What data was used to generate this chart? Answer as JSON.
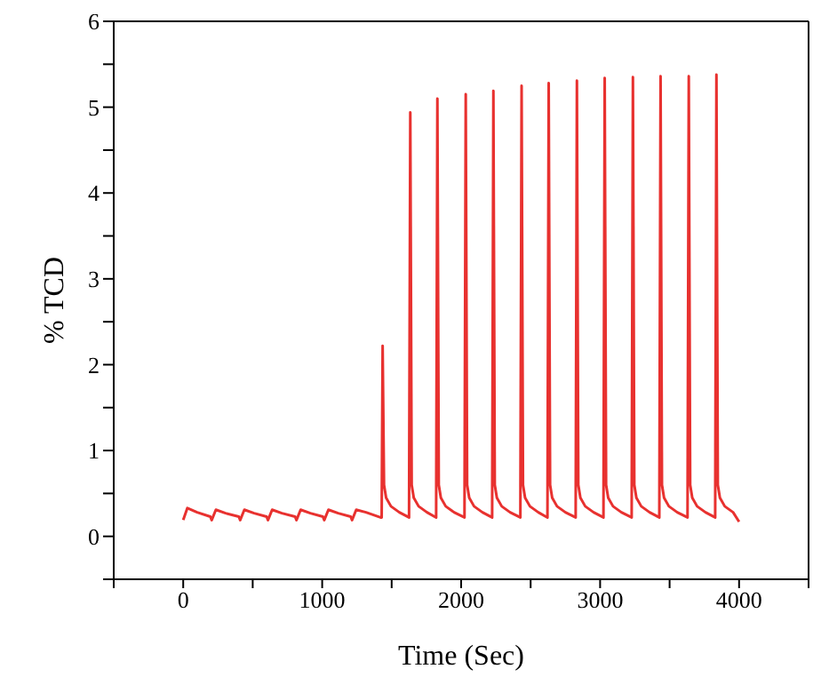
{
  "chart_data": {
    "type": "line",
    "xlabel": "Time (Sec)",
    "ylabel": "% TCD",
    "xlim": [
      -500,
      4500
    ],
    "ylim": [
      -0.5,
      6
    ],
    "xticks": [
      {
        "value": -500,
        "label": null
      },
      0,
      {
        "value": 500,
        "label": null
      },
      1000,
      {
        "value": 1500,
        "label": null
      },
      2000,
      {
        "value": 2500,
        "label": null
      },
      3000,
      {
        "value": 3500,
        "label": null
      },
      4000,
      {
        "value": 4500,
        "label": null
      }
    ],
    "yticks": [
      {
        "value": -0.5,
        "label": null
      },
      0,
      {
        "value": 0.5,
        "label": null
      },
      1,
      {
        "value": 1.5,
        "label": null
      },
      2,
      {
        "value": 2.5,
        "label": null
      },
      3,
      {
        "value": 3.5,
        "label": null
      },
      4,
      {
        "value": 4.5,
        "label": null
      },
      5,
      {
        "value": 5.5,
        "label": null
      },
      6
    ],
    "grid": false,
    "legend": false,
    "marker": "none",
    "line_style": "solid",
    "series": [
      {
        "color": "#e8312f",
        "x": [
          0,
          30,
          100,
          195,
          205,
          235,
          305,
          400,
          410,
          440,
          510,
          600,
          610,
          640,
          710,
          805,
          815,
          845,
          915,
          1005,
          1015,
          1045,
          1115,
          1205,
          1215,
          1245,
          1315,
          1420,
          1428,
          1435,
          1445,
          1460,
          1495,
          1555,
          1625,
          1634,
          1644,
          1659,
          1694,
          1754,
          1820,
          1829,
          1839,
          1854,
          1889,
          1949,
          2024,
          2033,
          2043,
          2058,
          2093,
          2153,
          2223,
          2232,
          2242,
          2257,
          2292,
          2352,
          2426,
          2435,
          2445,
          2460,
          2495,
          2555,
          2621,
          2630,
          2640,
          2655,
          2690,
          2750,
          2824,
          2833,
          2843,
          2858,
          2893,
          2953,
          3024,
          3033,
          3043,
          3058,
          3093,
          3153,
          3227,
          3236,
          3246,
          3261,
          3296,
          3356,
          3426,
          3435,
          3445,
          3460,
          3495,
          3555,
          3629,
          3638,
          3648,
          3663,
          3698,
          3758,
          3828,
          3837,
          3847,
          3862,
          3897,
          3957,
          4000
        ],
        "values": [
          0.19,
          0.33,
          0.28,
          0.23,
          0.19,
          0.31,
          0.27,
          0.23,
          0.19,
          0.31,
          0.27,
          0.23,
          0.19,
          0.31,
          0.27,
          0.23,
          0.19,
          0.31,
          0.27,
          0.23,
          0.19,
          0.31,
          0.27,
          0.23,
          0.19,
          0.31,
          0.28,
          0.22,
          0.22,
          2.22,
          0.6,
          0.45,
          0.35,
          0.28,
          0.22,
          4.94,
          0.6,
          0.45,
          0.35,
          0.28,
          0.22,
          5.1,
          0.6,
          0.45,
          0.35,
          0.28,
          0.22,
          5.15,
          0.6,
          0.45,
          0.35,
          0.28,
          0.22,
          5.19,
          0.6,
          0.45,
          0.35,
          0.28,
          0.22,
          5.25,
          0.6,
          0.45,
          0.35,
          0.28,
          0.22,
          5.28,
          0.6,
          0.45,
          0.35,
          0.28,
          0.22,
          5.31,
          0.6,
          0.45,
          0.35,
          0.28,
          0.22,
          5.34,
          0.6,
          0.45,
          0.35,
          0.28,
          0.22,
          5.35,
          0.6,
          0.45,
          0.35,
          0.28,
          0.22,
          5.36,
          0.6,
          0.45,
          0.35,
          0.28,
          0.22,
          5.36,
          0.6,
          0.45,
          0.35,
          0.28,
          0.22,
          5.38,
          0.6,
          0.45,
          0.35,
          0.28,
          0.17
        ]
      }
    ]
  }
}
